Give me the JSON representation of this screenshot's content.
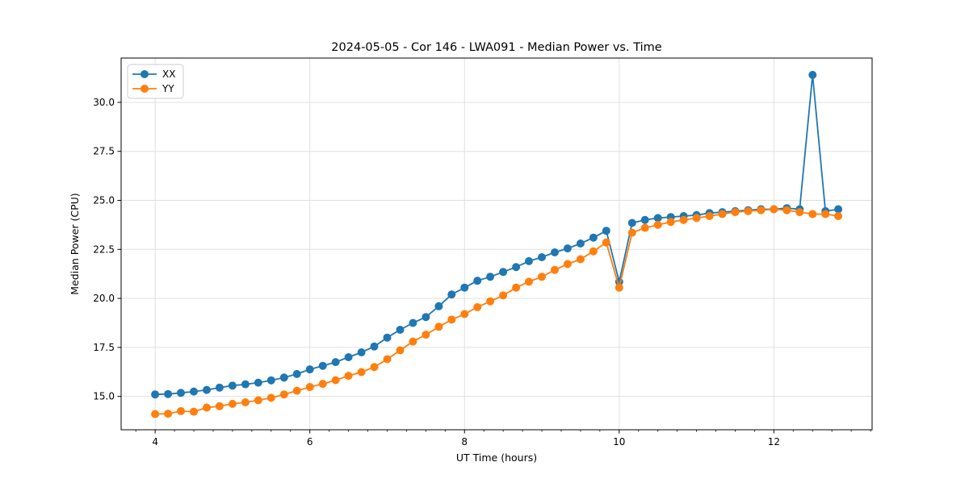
{
  "title": "2024-05-05 - Cor 146 - LWA091 - Median Power vs. Time",
  "chart_data": {
    "type": "line",
    "title": "2024-05-05 - Cor 146 - LWA091 - Median Power vs. Time",
    "xlabel": "UT Time (hours)",
    "ylabel": "Median Power (CPU)",
    "xlim": [
      3.56,
      13.27
    ],
    "ylim": [
      13.3,
      32.26
    ],
    "x_major_ticks": [
      4,
      6,
      8,
      10,
      12
    ],
    "x_minor_tick_step": 0.25,
    "y_major_ticks": [
      15.0,
      17.5,
      20.0,
      22.5,
      25.0,
      27.5,
      30.0
    ],
    "grid": true,
    "grid_color": "#e0e0e0",
    "legend_position": "upper left",
    "x": [
      4.0,
      4.167,
      4.333,
      4.5,
      4.667,
      4.833,
      5.0,
      5.167,
      5.333,
      5.5,
      5.667,
      5.833,
      6.0,
      6.167,
      6.333,
      6.5,
      6.667,
      6.833,
      7.0,
      7.167,
      7.333,
      7.5,
      7.667,
      7.833,
      8.0,
      8.167,
      8.333,
      8.5,
      8.667,
      8.833,
      9.0,
      9.167,
      9.333,
      9.5,
      9.667,
      9.833,
      10.0,
      10.167,
      10.333,
      10.5,
      10.667,
      10.833,
      11.0,
      11.167,
      11.333,
      11.5,
      11.667,
      11.833,
      12.0,
      12.167,
      12.333,
      12.5,
      12.667,
      12.833
    ],
    "series": [
      {
        "name": "XX",
        "color": "#1f77b4",
        "values": [
          15.1,
          15.12,
          15.18,
          15.25,
          15.33,
          15.45,
          15.55,
          15.62,
          15.7,
          15.82,
          15.96,
          16.14,
          16.38,
          16.56,
          16.75,
          17.0,
          17.25,
          17.55,
          18.0,
          18.4,
          18.75,
          19.05,
          19.6,
          20.2,
          20.55,
          20.9,
          21.1,
          21.35,
          21.6,
          21.9,
          22.1,
          22.35,
          22.55,
          22.8,
          23.1,
          23.45,
          20.85,
          23.85,
          24.0,
          24.1,
          24.15,
          24.2,
          24.25,
          24.35,
          24.4,
          24.45,
          24.5,
          24.55,
          24.55,
          24.6,
          24.55,
          31.4,
          24.45,
          24.55
        ]
      },
      {
        "name": "YY",
        "color": "#ff7f0e",
        "values": [
          14.1,
          14.12,
          14.25,
          14.22,
          14.43,
          14.5,
          14.62,
          14.7,
          14.8,
          14.93,
          15.1,
          15.29,
          15.48,
          15.64,
          15.83,
          16.05,
          16.24,
          16.5,
          16.9,
          17.35,
          17.8,
          18.15,
          18.55,
          18.92,
          19.2,
          19.55,
          19.85,
          20.15,
          20.55,
          20.85,
          21.1,
          21.45,
          21.75,
          22.0,
          22.4,
          22.85,
          20.55,
          23.35,
          23.6,
          23.75,
          23.9,
          24.0,
          24.1,
          24.2,
          24.3,
          24.4,
          24.45,
          24.5,
          24.55,
          24.5,
          24.4,
          24.3,
          24.3,
          24.2
        ]
      }
    ]
  }
}
